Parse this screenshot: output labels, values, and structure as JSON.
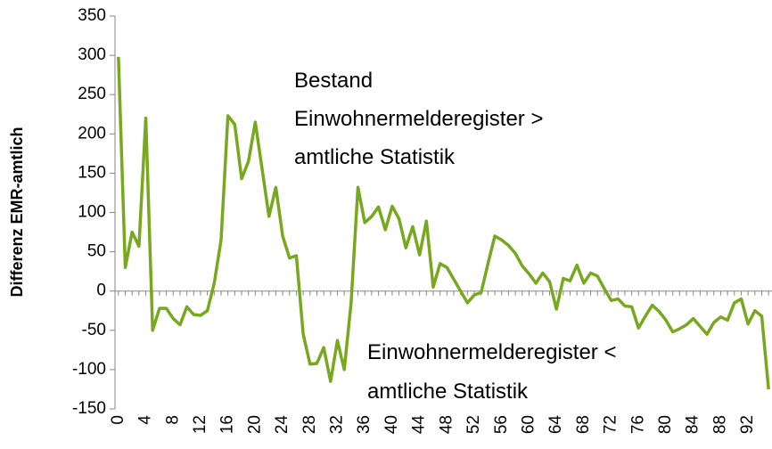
{
  "chart_data": {
    "type": "line",
    "y_label": "Differenz EMR-amtlich",
    "annotations": [
      {
        "lines": [
          "Bestand",
          "Einwohnermelderegister >",
          "amtliche Statistik"
        ]
      },
      {
        "lines": [
          "Einwohnermelderegister <",
          "amtliche Statistik"
        ]
      }
    ],
    "x": [
      0,
      1,
      2,
      3,
      4,
      5,
      6,
      7,
      8,
      9,
      10,
      11,
      12,
      13,
      14,
      15,
      16,
      17,
      18,
      19,
      20,
      21,
      22,
      23,
      24,
      25,
      26,
      27,
      28,
      29,
      30,
      31,
      32,
      33,
      34,
      35,
      36,
      37,
      38,
      39,
      40,
      41,
      42,
      43,
      44,
      45,
      46,
      47,
      48,
      49,
      50,
      51,
      52,
      53,
      54,
      55,
      56,
      57,
      58,
      59,
      60,
      61,
      62,
      63,
      64,
      65,
      66,
      67,
      68,
      69,
      70,
      71,
      72,
      73,
      74,
      75,
      76,
      77,
      78,
      79,
      80,
      81,
      82,
      83,
      84,
      85,
      86,
      87,
      88,
      89,
      90,
      91,
      92,
      93,
      94,
      95
    ],
    "series": [
      {
        "color": "#77a81e",
        "values": [
          298,
          30,
          75,
          57,
          220,
          -50,
          -22,
          -22,
          -35,
          -43,
          -20,
          -30,
          -31,
          -25,
          10,
          65,
          223,
          212,
          143,
          165,
          215,
          155,
          95,
          132,
          70,
          42,
          45,
          -55,
          -93,
          -92,
          -72,
          -115,
          -63,
          -100,
          -15,
          132,
          87,
          95,
          107,
          78,
          108,
          92,
          55,
          82,
          46,
          89,
          5,
          35,
          30,
          15,
          0,
          -15,
          -5,
          -2,
          35,
          70,
          65,
          58,
          48,
          32,
          22,
          10,
          23,
          12,
          -23,
          16,
          13,
          33,
          10,
          23,
          19,
          3,
          -12,
          -10,
          -19,
          -20,
          -47,
          -32,
          -18,
          -26,
          -37,
          -52,
          -48,
          -43,
          -35,
          -45,
          -55,
          -40,
          -33,
          -37,
          -15,
          -10,
          -42,
          -25,
          -32,
          -125
        ]
      }
    ],
    "xlim": [
      -0.5,
      95.5
    ],
    "xticks": [
      0,
      4,
      8,
      12,
      16,
      20,
      24,
      28,
      32,
      36,
      40,
      44,
      48,
      52,
      56,
      60,
      64,
      68,
      72,
      76,
      80,
      84,
      88,
      92
    ],
    "ylim": [
      -150,
      350
    ],
    "yticks": [
      -150,
      -100,
      -50,
      0,
      50,
      100,
      150,
      200,
      250,
      300,
      350
    ]
  }
}
